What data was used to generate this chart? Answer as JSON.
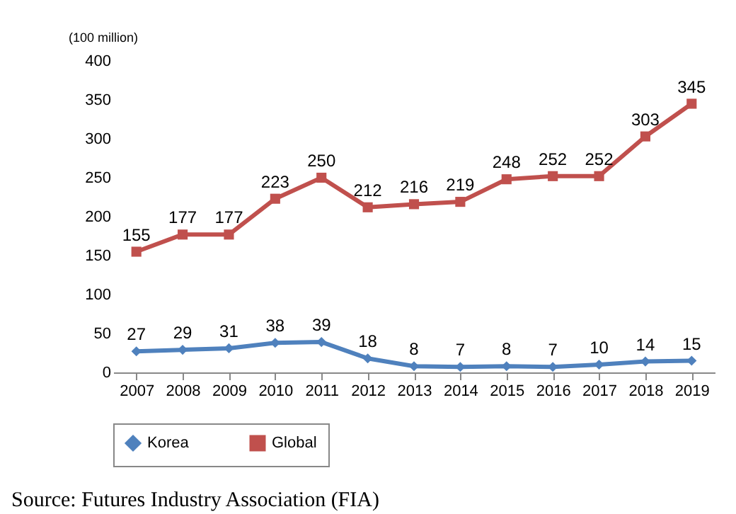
{
  "chart_data": {
    "type": "line",
    "ylabel": "(100 million)",
    "categories": [
      "2007",
      "2008",
      "2009",
      "2010",
      "2011",
      "2012",
      "2013",
      "2014",
      "2015",
      "2016",
      "2017",
      "2018",
      "2019"
    ],
    "series": [
      {
        "name": "Korea",
        "color": "#4f81bd",
        "marker": "diamond",
        "values": [
          27,
          29,
          31,
          38,
          39,
          18,
          8,
          7,
          8,
          7,
          10,
          14,
          15
        ]
      },
      {
        "name": "Global",
        "color": "#c0504d",
        "marker": "square",
        "values": [
          155,
          177,
          177,
          223,
          250,
          212,
          216,
          219,
          248,
          252,
          252,
          303,
          345
        ]
      }
    ],
    "ylim": [
      0,
      400
    ],
    "yticks": [
      0,
      50,
      100,
      150,
      200,
      250,
      300,
      350,
      400
    ],
    "grid": false,
    "legend": "bottom",
    "data_labels": true,
    "annotations": [
      "Source: Futures Industry Association (FIA)"
    ]
  }
}
